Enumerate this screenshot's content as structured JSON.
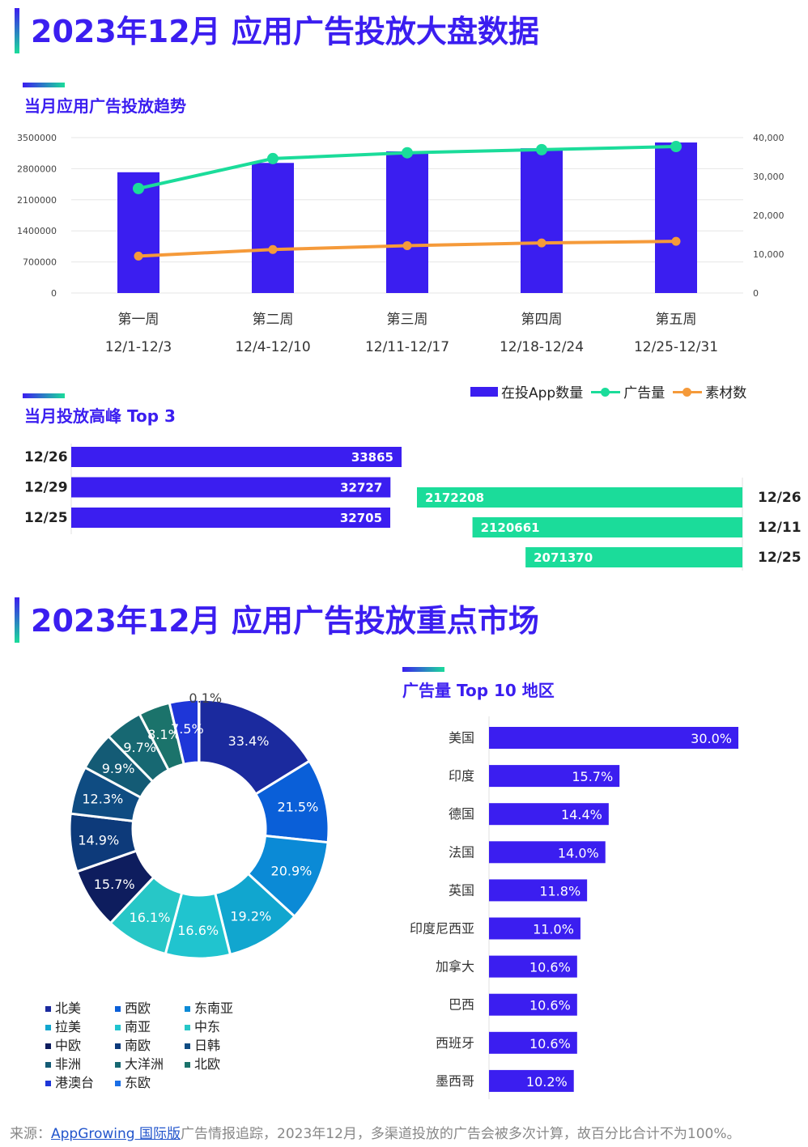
{
  "section1": {
    "title": "2023年12月 应用广告投放大盘数据"
  },
  "trend": {
    "subtitle": "当月应用广告投放趋势",
    "chart_data": {
      "type": "bar",
      "categories": [
        "第一周",
        "第二周",
        "第三周",
        "第四周",
        "第五周"
      ],
      "date_ranges": [
        "12/1-12/3",
        "12/4-12/10",
        "12/11-12/17",
        "12/18-12/24",
        "12/25-12/31"
      ],
      "left_ticks": [
        "3500000",
        "2800000",
        "2100000",
        "1400000",
        "700000",
        "0"
      ],
      "right_ticks": [
        "40,000",
        "30,000",
        "20,000",
        "10,000",
        "0"
      ],
      "ylim_left": [
        0,
        3500000
      ],
      "ylim_right": [
        0,
        40000
      ],
      "series": [
        {
          "name": "在投App数量",
          "kind": "bar",
          "axis": "left",
          "color": "#3b1ef0",
          "values": [
            2720000,
            2930000,
            3190000,
            3260000,
            3390000
          ]
        },
        {
          "name": "广告量",
          "kind": "line",
          "axis": "right",
          "color": "#1bdc9a",
          "values": [
            26900,
            34600,
            36100,
            36900,
            37700
          ]
        },
        {
          "name": "素材数",
          "kind": "line",
          "axis": "right",
          "color": "#f59a3a",
          "values": [
            9500,
            11200,
            12200,
            12900,
            13300
          ]
        }
      ]
    }
  },
  "peak": {
    "subtitle": "当月投放高峰 Top 3",
    "chart_data": {
      "type": "bar",
      "left": {
        "dates": [
          "12/26",
          "12/29",
          "12/25"
        ],
        "values": [
          33865,
          32727,
          32705
        ],
        "color": "#3b1ef0"
      },
      "right": {
        "dates": [
          "12/26",
          "12/11",
          "12/25"
        ],
        "values": [
          2172208,
          2120661,
          2071370
        ],
        "color": "#1bdc9a"
      }
    }
  },
  "section2": {
    "title": "2023年12月 应用广告投放重点市场"
  },
  "pie": {
    "chart_data": {
      "type": "pie",
      "slices": [
        {
          "name": "北美",
          "value": 33.4,
          "label": "33.4%",
          "color": "#1b2a9e"
        },
        {
          "name": "西欧",
          "value": 21.5,
          "label": "21.5%",
          "color": "#0a5fd8"
        },
        {
          "name": "东南亚",
          "value": 20.9,
          "label": "20.9%",
          "color": "#0b8ad6"
        },
        {
          "name": "拉美",
          "value": 19.2,
          "label": "19.2%",
          "color": "#11a6cf"
        },
        {
          "name": "南亚",
          "value": 16.6,
          "label": "16.6%",
          "color": "#20c4cf"
        },
        {
          "name": "中东",
          "value": 16.1,
          "label": "16.1%",
          "color": "#27c7c7"
        },
        {
          "name": "中欧",
          "value": 15.7,
          "label": "15.7%",
          "color": "#0e1d5e"
        },
        {
          "name": "南欧",
          "value": 14.9,
          "label": "14.9%",
          "color": "#0d3a7a"
        },
        {
          "name": "日韩",
          "value": 12.3,
          "label": "12.3%",
          "color": "#0f4c82"
        },
        {
          "name": "非洲",
          "value": 9.9,
          "label": "9.9%",
          "color": "#145b75"
        },
        {
          "name": "大洋洲",
          "value": 9.7,
          "label": "9.7%",
          "color": "#176872"
        },
        {
          "name": "北欧",
          "value": 8.1,
          "label": "8.1%",
          "color": "#1b736b"
        },
        {
          "name": "港澳台",
          "value": 7.5,
          "label": "7.5%",
          "color": "#1e36d8"
        },
        {
          "name": "东欧",
          "value": 0.1,
          "label": "0.1%",
          "color": "#1a6ee6"
        }
      ]
    }
  },
  "regions": {
    "subtitle": "广告量 Top 10 地区",
    "chart_data": {
      "type": "bar",
      "orientation": "horizontal",
      "categories": [
        "美国",
        "印度",
        "德国",
        "法国",
        "英国",
        "印度尼西亚",
        "加拿大",
        "巴西",
        "西班牙",
        "墨西哥"
      ],
      "values": [
        30.0,
        15.7,
        14.4,
        14.0,
        11.8,
        11.0,
        10.6,
        10.6,
        10.6,
        10.2
      ],
      "labels": [
        "30.0%",
        "15.7%",
        "14.4%",
        "14.0%",
        "11.8%",
        "11.0%",
        "10.6%",
        "10.6%",
        "10.6%",
        "10.2%"
      ],
      "xlim": [
        0,
        30
      ],
      "color": "#3b1ef0"
    }
  },
  "footer": {
    "prefix": "来源：",
    "link": "AppGrowing 国际版",
    "suffix": "广告情报追踪，2023年12月，多渠道投放的广告会被多次计算，故百分比合计不为100%。"
  }
}
